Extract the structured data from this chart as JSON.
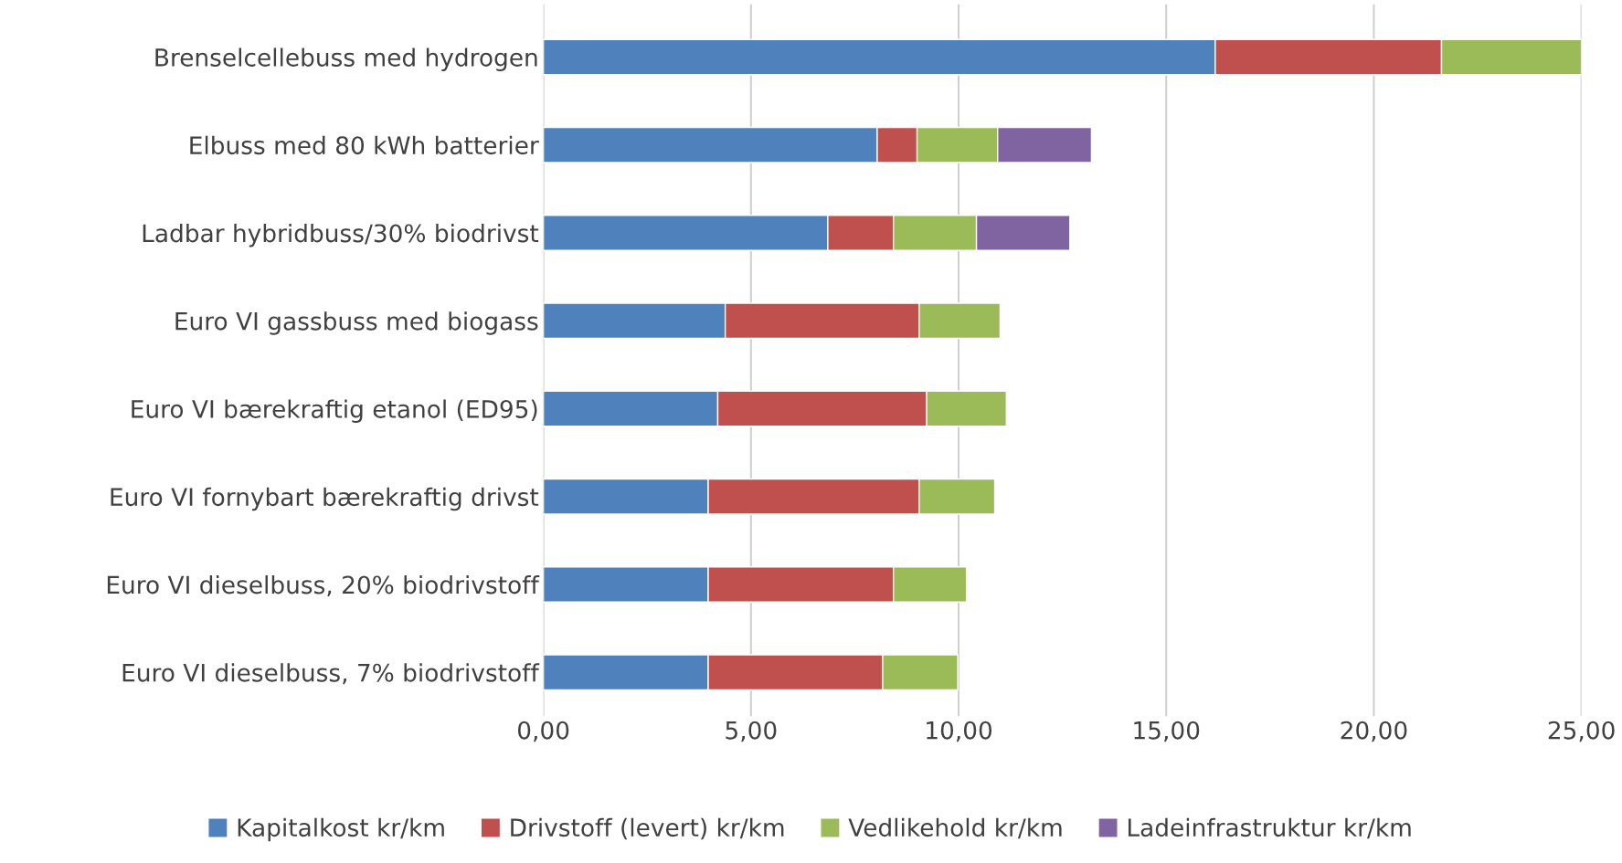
{
  "chart_data": {
    "type": "bar",
    "orientation": "horizontal",
    "stacked": true,
    "categories": [
      "Brenselcellebuss med hydrogen",
      "Elbuss med 80 kWh batterier",
      "Ladbar hybridbuss/30% biodrivst",
      "Euro VI gassbuss med biogass",
      "Euro VI bærekraftig etanol (ED95)",
      "Euro VI fornybart bærekraftig drivst",
      "Euro VI dieselbuss, 20% biodrivstoff",
      "Euro VI dieselbuss, 7% biodrivstoff"
    ],
    "series": [
      {
        "name": "Kapitalkost kr/km",
        "color": "#4f81bd",
        "values": [
          16.18,
          8.04,
          6.85,
          4.38,
          4.2,
          3.97,
          3.97,
          3.97
        ]
      },
      {
        "name": "Drivstoff (levert) kr/km",
        "color": "#c0504d",
        "values": [
          5.45,
          0.96,
          1.58,
          4.67,
          5.03,
          5.08,
          4.46,
          4.2
        ]
      },
      {
        "name": "Vedlikehold kr/km",
        "color": "#9bbb59",
        "values": [
          3.37,
          1.94,
          2.0,
          1.95,
          1.92,
          1.82,
          1.76,
          1.81
        ]
      },
      {
        "name": "Ladeinfrastruktur kr/km",
        "color": "#8064a2",
        "values": [
          null,
          2.26,
          2.25,
          null,
          null,
          null,
          null,
          null
        ]
      }
    ],
    "xlim": [
      0,
      25
    ],
    "xticks": [
      {
        "value": 0,
        "label": "0,00"
      },
      {
        "value": 5,
        "label": "5,00"
      },
      {
        "value": 10,
        "label": "10,00"
      },
      {
        "value": 15,
        "label": "15,00"
      },
      {
        "value": 20,
        "label": "20,00"
      },
      {
        "value": 25,
        "label": "25,00"
      }
    ],
    "grid": "x",
    "legend": "bottom"
  }
}
